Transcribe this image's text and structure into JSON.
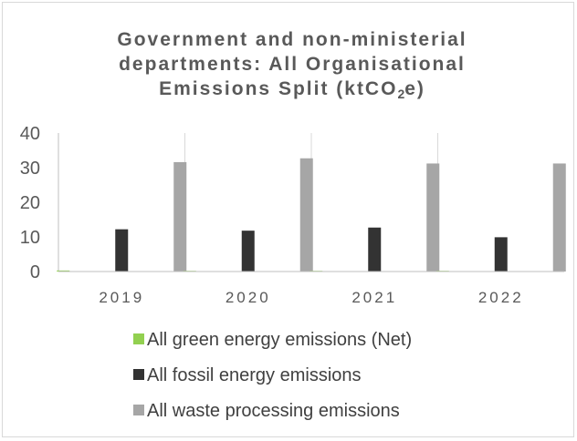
{
  "chart_data": {
    "type": "bar",
    "title_lines": [
      "Government and non-ministerial",
      "departments: All Organisational",
      "Emissions Split (ktCO",
      "2",
      "e)"
    ],
    "categories": [
      "2019",
      "2020",
      "2021",
      "2022"
    ],
    "series": [
      {
        "name": "All green energy emissions (Net)",
        "values": [
          0.3,
          0.2,
          0.2,
          0.2
        ],
        "color": "#92d050"
      },
      {
        "name": "All fossil energy emissions",
        "values": [
          12.2,
          11.8,
          12.7,
          9.9
        ],
        "color": "#333333"
      },
      {
        "name": "All waste processing emissions",
        "values": [
          31.6,
          32.7,
          31.2,
          31.2
        ],
        "color": "#a6a6a6"
      }
    ],
    "yticks": [
      "0",
      "10",
      "20",
      "30",
      "40"
    ],
    "ylim": [
      0,
      40
    ],
    "grid": "vertical category separators",
    "legend_position": "bottom"
  }
}
